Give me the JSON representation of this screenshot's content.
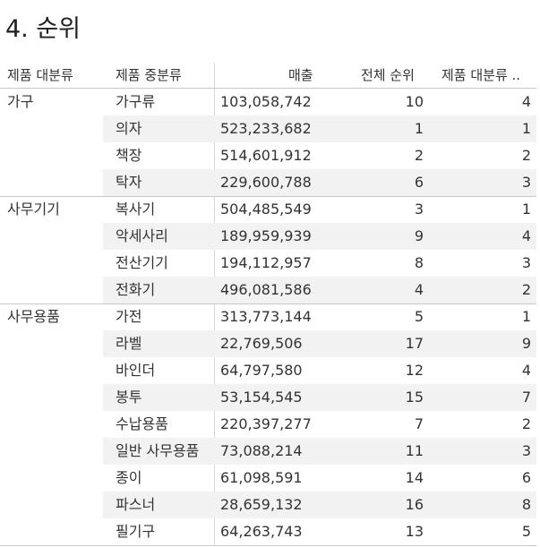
{
  "title": "4. 순위",
  "table": {
    "headers": {
      "category": "제품 대분류",
      "subcategory": "제품 중분류",
      "sales": "매출",
      "overall_rank": "전체 순위",
      "category_rank": "제품 대분류 .."
    },
    "groups": [
      {
        "category": "가구",
        "rows": [
          {
            "sub": "가구류",
            "sales": "103,058,742",
            "rank": "10",
            "cat_rank": "4"
          },
          {
            "sub": "의자",
            "sales": "523,233,682",
            "rank": "1",
            "cat_rank": "1"
          },
          {
            "sub": "책장",
            "sales": "514,601,912",
            "rank": "2",
            "cat_rank": "2"
          },
          {
            "sub": "탁자",
            "sales": "229,600,788",
            "rank": "6",
            "cat_rank": "3"
          }
        ]
      },
      {
        "category": "사무기기",
        "rows": [
          {
            "sub": "복사기",
            "sales": "504,485,549",
            "rank": "3",
            "cat_rank": "1"
          },
          {
            "sub": "악세사리",
            "sales": "189,959,939",
            "rank": "9",
            "cat_rank": "4"
          },
          {
            "sub": "전산기기",
            "sales": "194,112,957",
            "rank": "8",
            "cat_rank": "3"
          },
          {
            "sub": "전화기",
            "sales": "496,081,586",
            "rank": "4",
            "cat_rank": "2"
          }
        ]
      },
      {
        "category": "사무용품",
        "rows": [
          {
            "sub": "가전",
            "sales": "313,773,144",
            "rank": "5",
            "cat_rank": "1"
          },
          {
            "sub": "라벨",
            "sales": "22,769,506",
            "rank": "17",
            "cat_rank": "9"
          },
          {
            "sub": "바인더",
            "sales": "64,797,580",
            "rank": "12",
            "cat_rank": "4"
          },
          {
            "sub": "봉투",
            "sales": "53,154,545",
            "rank": "15",
            "cat_rank": "7"
          },
          {
            "sub": "수납용품",
            "sales": "220,397,277",
            "rank": "7",
            "cat_rank": "2"
          },
          {
            "sub": "일반 사무용품",
            "sales": "73,088,214",
            "rank": "11",
            "cat_rank": "3"
          },
          {
            "sub": "종이",
            "sales": "61,098,591",
            "rank": "14",
            "cat_rank": "6"
          },
          {
            "sub": "파스너",
            "sales": "28,659,132",
            "rank": "16",
            "cat_rank": "8"
          },
          {
            "sub": "필기구",
            "sales": "64,263,743",
            "rank": "13",
            "cat_rank": "5"
          }
        ]
      }
    ]
  }
}
